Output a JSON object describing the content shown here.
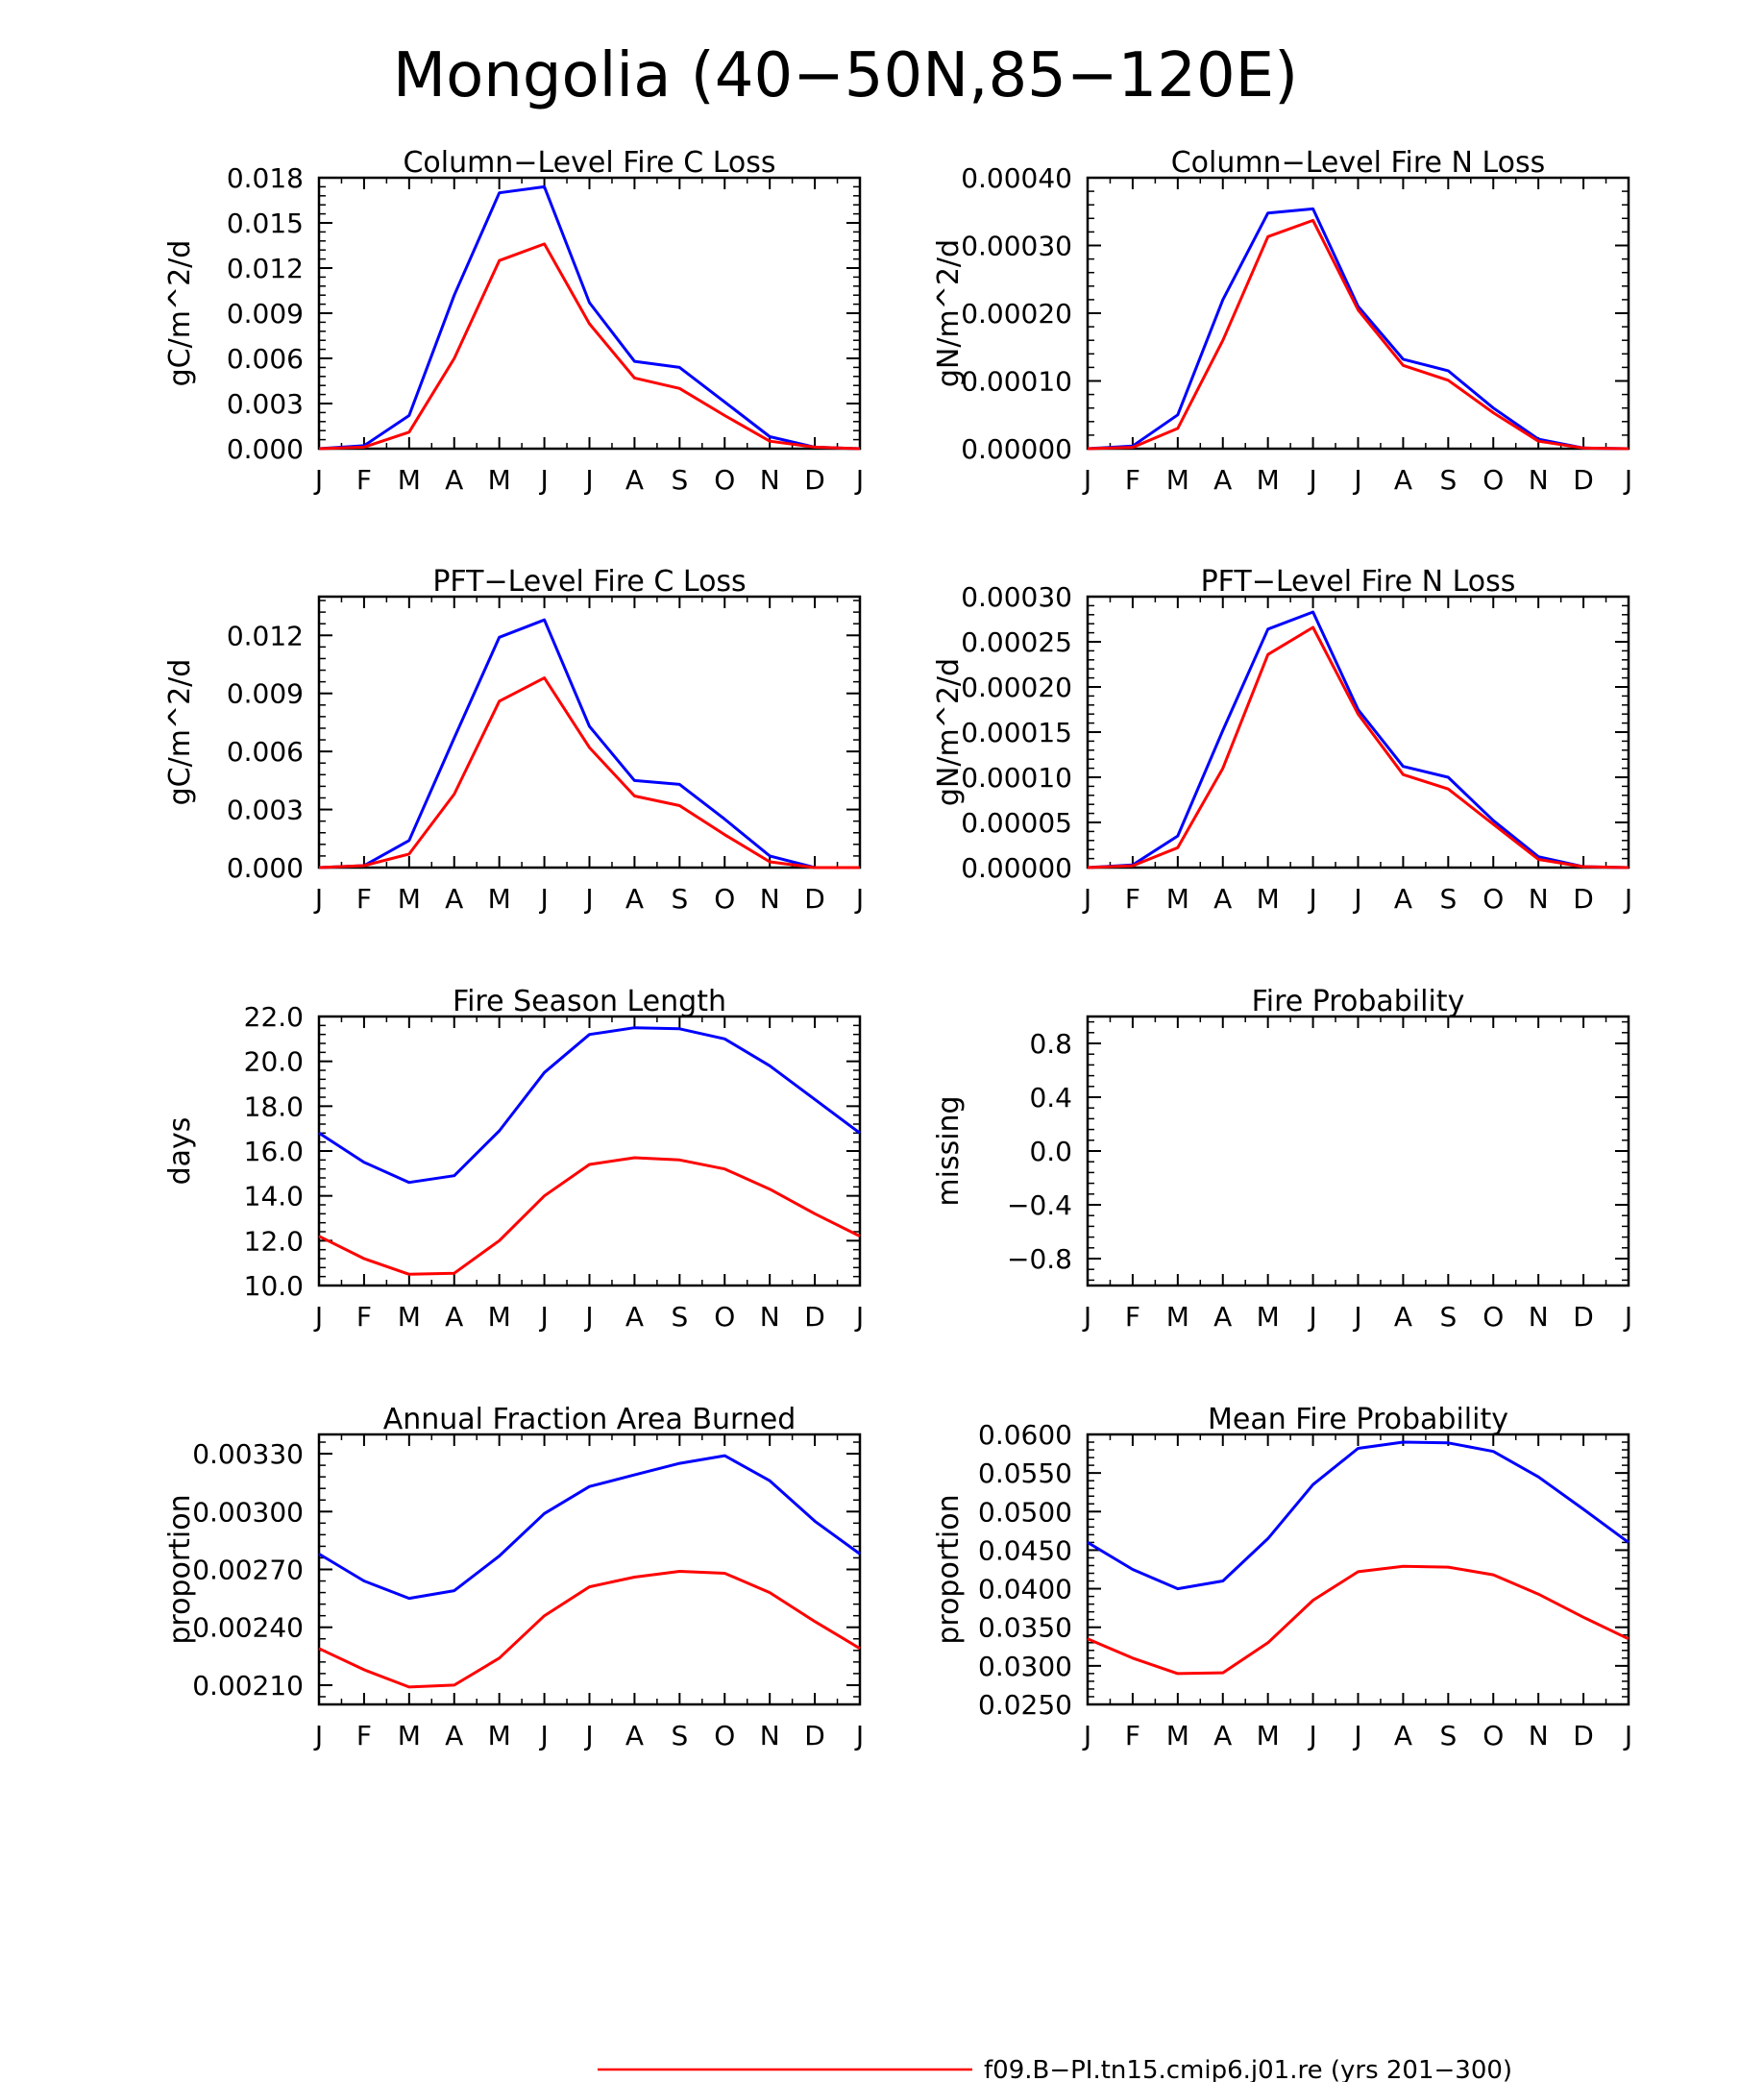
{
  "page": {
    "title": "Mongolia (40−50N,85−120E)"
  },
  "colors": {
    "series_red": "#ff0000",
    "series_blue": "#0000ff",
    "axis": "#000000"
  },
  "legend": {
    "red_label": "f09.B−PI.tn15.cmip6.j01.re (yrs 201−300)"
  },
  "chart_data": [
    {
      "type": "line",
      "title": "Column−Level Fire C Loss",
      "ylabel": "gC/m^2/d",
      "x": [
        "J",
        "F",
        "M",
        "A",
        "M",
        "J",
        "J",
        "A",
        "S",
        "O",
        "N",
        "D",
        "J"
      ],
      "ylim": [
        0,
        0.018
      ],
      "yticks": [
        "0.000",
        "0.003",
        "0.006",
        "0.009",
        "0.012",
        "0.015",
        "0.018"
      ],
      "series": [
        {
          "color": "#0000ff",
          "values": [
            0,
            0.0002,
            0.0022,
            0.0102,
            0.017,
            0.0174,
            0.0097,
            0.0058,
            0.0054,
            0.0031,
            0.0008,
            0.0001,
            0
          ]
        },
        {
          "color": "#ff0000",
          "values": [
            0,
            0.0001,
            0.0011,
            0.006,
            0.0125,
            0.0136,
            0.0083,
            0.0047,
            0.004,
            0.0022,
            0.0005,
            0.0001,
            0
          ]
        }
      ]
    },
    {
      "type": "line",
      "title": "Column−Level Fire N Loss",
      "ylabel": "gN/m^2/d",
      "x": [
        "J",
        "F",
        "M",
        "A",
        "M",
        "J",
        "J",
        "A",
        "S",
        "O",
        "N",
        "D",
        "J"
      ],
      "ylim": [
        0,
        0.0004
      ],
      "yticks": [
        "0.00000",
        "0.00010",
        "0.00020",
        "0.00030",
        "0.00040"
      ],
      "series": [
        {
          "color": "#0000ff",
          "values": [
            0,
            4e-06,
            5e-05,
            0.00022,
            0.000348,
            0.000354,
            0.00021,
            0.000132,
            0.000115,
            6e-05,
            1.4e-05,
            1e-06,
            0
          ]
        },
        {
          "color": "#ff0000",
          "values": [
            0,
            2e-06,
            3e-05,
            0.00016,
            0.000313,
            0.000337,
            0.000205,
            0.000123,
            0.000101,
            5.3e-05,
            1.1e-05,
            1e-06,
            0
          ]
        }
      ]
    },
    {
      "type": "line",
      "title": "PFT−Level Fire C Loss",
      "ylabel": "gC/m^2/d",
      "x": [
        "J",
        "F",
        "M",
        "A",
        "M",
        "J",
        "J",
        "A",
        "S",
        "O",
        "N",
        "D",
        "J"
      ],
      "ylim": [
        0,
        0.014
      ],
      "yticks": [
        "0.000",
        "0.003",
        "0.006",
        "0.009",
        "0.012"
      ],
      "series": [
        {
          "color": "#0000ff",
          "values": [
            0,
            0.0001,
            0.0014,
            0.0067,
            0.0119,
            0.0128,
            0.0073,
            0.0045,
            0.0043,
            0.0025,
            0.0006,
            0,
            0
          ]
        },
        {
          "color": "#ff0000",
          "values": [
            0,
            0.0001,
            0.0007,
            0.0038,
            0.0086,
            0.0098,
            0.0062,
            0.0037,
            0.0032,
            0.0017,
            0.0003,
            0,
            0
          ]
        }
      ]
    },
    {
      "type": "line",
      "title": "PFT−Level Fire N Loss",
      "ylabel": "gN/m^2/d",
      "x": [
        "J",
        "F",
        "M",
        "A",
        "M",
        "J",
        "J",
        "A",
        "S",
        "O",
        "N",
        "D",
        "J"
      ],
      "ylim": [
        0,
        0.0003
      ],
      "yticks": [
        "0.00000",
        "0.00005",
        "0.00010",
        "0.00015",
        "0.00020",
        "0.00025",
        "0.00030"
      ],
      "series": [
        {
          "color": "#0000ff",
          "values": [
            0,
            3e-06,
            3.5e-05,
            0.000152,
            0.000264,
            0.000283,
            0.000175,
            0.000112,
            0.0001,
            5.2e-05,
            1.2e-05,
            1e-06,
            0
          ]
        },
        {
          "color": "#ff0000",
          "values": [
            0,
            2e-06,
            2.2e-05,
            0.00011,
            0.000236,
            0.000266,
            0.00017,
            0.000103,
            8.7e-05,
            4.8e-05,
            9e-06,
            1e-06,
            0
          ]
        }
      ]
    },
    {
      "type": "line",
      "title": "Fire Season Length",
      "ylabel": "days",
      "x": [
        "J",
        "F",
        "M",
        "A",
        "M",
        "J",
        "J",
        "A",
        "S",
        "O",
        "N",
        "D",
        "J"
      ],
      "ylim": [
        10,
        22
      ],
      "yticks": [
        "10.0",
        "12.0",
        "14.0",
        "16.0",
        "18.0",
        "20.0",
        "22.0"
      ],
      "series": [
        {
          "color": "#0000ff",
          "values": [
            16.8,
            15.5,
            14.6,
            14.9,
            16.9,
            19.5,
            21.2,
            21.5,
            21.45,
            21.0,
            19.8,
            18.3,
            16.8
          ]
        },
        {
          "color": "#ff0000",
          "values": [
            12.2,
            11.2,
            10.5,
            10.55,
            12.0,
            14.0,
            15.4,
            15.7,
            15.6,
            15.2,
            14.3,
            13.2,
            12.2
          ]
        }
      ]
    },
    {
      "type": "line",
      "title": "Fire Probability",
      "ylabel": "missing",
      "x": [
        "J",
        "F",
        "M",
        "A",
        "M",
        "J",
        "J",
        "A",
        "S",
        "O",
        "N",
        "D",
        "J"
      ],
      "ylim": [
        -1,
        1
      ],
      "yticks": [
        "−0.8",
        "−0.4",
        "0.0",
        "0.4",
        "0.8"
      ],
      "series": []
    },
    {
      "type": "line",
      "title": "Annual Fraction Area Burned",
      "ylabel": "proportion",
      "x": [
        "J",
        "F",
        "M",
        "A",
        "M",
        "J",
        "J",
        "A",
        "S",
        "O",
        "N",
        "D",
        "J"
      ],
      "ylim": [
        0.002,
        0.0034
      ],
      "yticks": [
        "0.00210",
        "0.00240",
        "0.00270",
        "0.00300",
        "0.00330"
      ],
      "series": [
        {
          "color": "#0000ff",
          "values": [
            0.00278,
            0.00264,
            0.00255,
            0.00259,
            0.00277,
            0.00299,
            0.00313,
            0.00319,
            0.00325,
            0.00329,
            0.00316,
            0.00295,
            0.00278
          ]
        },
        {
          "color": "#ff0000",
          "values": [
            0.00229,
            0.00218,
            0.00209,
            0.0021,
            0.00224,
            0.00246,
            0.00261,
            0.00266,
            0.00269,
            0.00268,
            0.00258,
            0.00243,
            0.00229
          ]
        }
      ]
    },
    {
      "type": "line",
      "title": "Mean Fire Probability",
      "ylabel": "proportion",
      "x": [
        "J",
        "F",
        "M",
        "A",
        "M",
        "J",
        "J",
        "A",
        "S",
        "O",
        "N",
        "D",
        "J"
      ],
      "ylim": [
        0.025,
        0.06
      ],
      "yticks": [
        "0.0250",
        "0.0300",
        "0.0350",
        "0.0400",
        "0.0450",
        "0.0500",
        "0.0550",
        "0.0600"
      ],
      "series": [
        {
          "color": "#0000ff",
          "values": [
            0.046,
            0.0425,
            0.04,
            0.041,
            0.0465,
            0.0535,
            0.0582,
            0.059,
            0.0589,
            0.0578,
            0.0545,
            0.0503,
            0.046
          ]
        },
        {
          "color": "#ff0000",
          "values": [
            0.0335,
            0.031,
            0.029,
            0.0291,
            0.033,
            0.0385,
            0.0422,
            0.0429,
            0.0428,
            0.0418,
            0.0393,
            0.0363,
            0.0335
          ]
        }
      ]
    }
  ]
}
